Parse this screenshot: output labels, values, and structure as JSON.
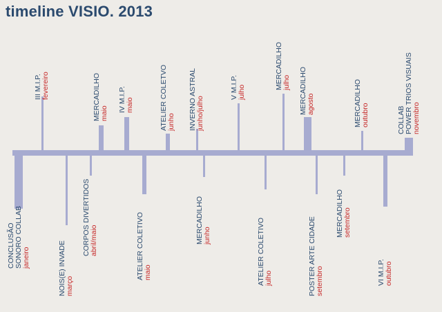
{
  "title": "timeline VISIO. 2013",
  "colors": {
    "title": "#2b4a6e",
    "event_name": "#2b4a6e",
    "month": "#c62828",
    "bar": "#a7abd0",
    "background": "#eeece8"
  },
  "events": [
    {
      "lines": [
        "CONCLUSÃO",
        "SONORO COLLAB"
      ],
      "month": "janeiro"
    },
    {
      "lines": [
        "III M.I.P."
      ],
      "month": "fevereiro"
    },
    {
      "lines": [
        "NOIS(E) INVADE"
      ],
      "month": "março"
    },
    {
      "lines": [
        "CORPOS DIVERTIDOS"
      ],
      "month": "abril/maio"
    },
    {
      "lines": [
        "MERCADILHO"
      ],
      "month": "maio"
    },
    {
      "lines": [
        "IV M.I.P."
      ],
      "month": "maio"
    },
    {
      "lines": [
        "ATELIER COLETIVO"
      ],
      "month": "maio"
    },
    {
      "lines": [
        "ATELIER COLETVO"
      ],
      "month": "junho"
    },
    {
      "lines": [
        "INVERNO ASTRAL"
      ],
      "month": "junho/julho"
    },
    {
      "lines": [
        "MERCADILHO"
      ],
      "month": "junho"
    },
    {
      "lines": [
        "V M.I.P."
      ],
      "month": "julho"
    },
    {
      "lines": [
        "ATELIER COLETIVO"
      ],
      "month": "julho"
    },
    {
      "lines": [
        "MERCADILHO"
      ],
      "month": "julho"
    },
    {
      "lines": [
        "MERCADILHO"
      ],
      "month": "agosto"
    },
    {
      "lines": [
        "POSTER ARTE CIDADE"
      ],
      "month": "setembro"
    },
    {
      "lines": [
        "MERCADILHO"
      ],
      "month": "setembro"
    },
    {
      "lines": [
        "MERCADILHO"
      ],
      "month": "outubro"
    },
    {
      "lines": [
        "VI M.I.P."
      ],
      "month": "outubro"
    },
    {
      "lines": [
        "COLLAB",
        "POWER TRIOS VISUAIS"
      ],
      "month": "novembro"
    }
  ]
}
